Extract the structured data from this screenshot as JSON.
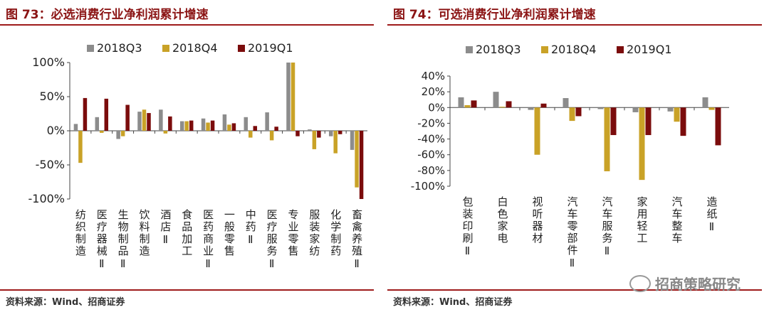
{
  "figures": [
    {
      "title": "图 73：必选消费行业净利润累计增速",
      "source": "资料来源：Wind、招商证券"
    },
    {
      "title": "图 74：可选消费行业净利润累计增速",
      "source": "资料来源：Wind、招商证券"
    }
  ],
  "watermark": "招商策略研究",
  "colors": {
    "s1": "#8c8c8c",
    "s2": "#c9a227",
    "s3": "#7b0c0c",
    "title": "#8b1414"
  },
  "chart_data": [
    {
      "type": "bar",
      "title": "",
      "categories": [
        "纺织制造",
        "医疗器械Ⅱ",
        "生物制品Ⅱ",
        "饮料制造",
        "酒店Ⅱ",
        "食品加工",
        "医药商业Ⅱ",
        "一般零售",
        "中药Ⅱ",
        "医疗服务Ⅱ",
        "专业零售",
        "服装家纺",
        "化学制药",
        "畜禽养殖Ⅱ"
      ],
      "series": [
        {
          "name": "2018Q3",
          "values": [
            10,
            20,
            -12,
            28,
            31,
            14,
            18,
            24,
            20,
            27,
            100,
            2,
            -8,
            -28
          ]
        },
        {
          "name": "2018Q4",
          "values": [
            -47,
            -3,
            -8,
            31,
            -4,
            14,
            12,
            9,
            -10,
            -14,
            100,
            -27,
            -33,
            -83
          ]
        },
        {
          "name": "2019Q1",
          "values": [
            48,
            47,
            38,
            26,
            21,
            15,
            15,
            11,
            7,
            6,
            -8,
            -10,
            -5,
            -102
          ]
        }
      ],
      "yticks": [
        "100%",
        "50%",
        "0%",
        "-50%",
        "-100%"
      ],
      "ylim": [
        -100,
        100
      ],
      "legend": "top"
    },
    {
      "type": "bar",
      "title": "",
      "categories": [
        "包装印刷Ⅱ",
        "白色家电",
        "视听器材",
        "汽车零部件Ⅱ",
        "汽车服务Ⅱ",
        "家用轻工",
        "汽车整车",
        "造纸Ⅱ"
      ],
      "series": [
        {
          "name": "2018Q3",
          "values": [
            13,
            20,
            -3,
            12,
            -2,
            -6,
            -5,
            13
          ]
        },
        {
          "name": "2018Q4",
          "values": [
            3,
            1,
            -60,
            -17,
            -81,
            -92,
            -18,
            -3
          ]
        },
        {
          "name": "2019Q1",
          "values": [
            9,
            8,
            5,
            -11,
            -35,
            -35,
            -36,
            -48
          ]
        }
      ],
      "yticks": [
        "40%",
        "20%",
        "0%",
        "-20%",
        "-40%",
        "-60%",
        "-80%",
        "-100%"
      ],
      "ylim": [
        -100,
        40
      ],
      "legend": "top"
    }
  ]
}
